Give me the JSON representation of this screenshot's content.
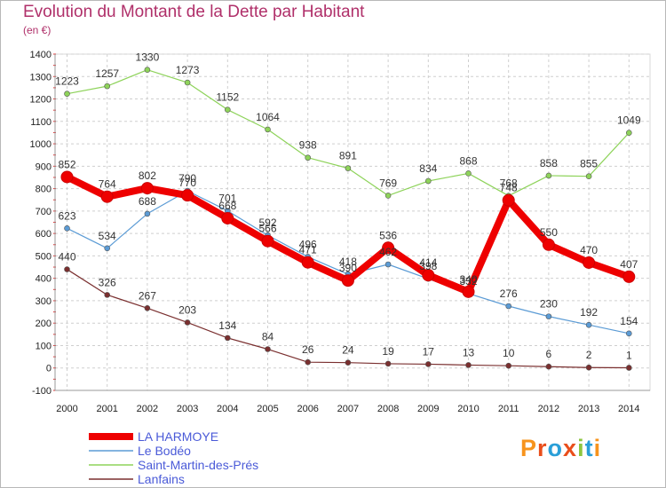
{
  "header": {
    "title": "Evolution du Montant de la Dette par Habitant",
    "subtitle": "(en €)"
  },
  "logo": {
    "text": "Proxiti",
    "colors": [
      "#f7941d",
      "#e94e1b",
      "#2a9fd8",
      "#e94e1b",
      "#8dc63f",
      "#2a9fd8",
      "#f7941d"
    ]
  },
  "chart_data": {
    "type": "line",
    "ylim": [
      -100,
      1400
    ],
    "yticks": [
      -100,
      0,
      100,
      200,
      300,
      400,
      500,
      600,
      700,
      800,
      900,
      1000,
      1100,
      1200,
      1300,
      1400
    ],
    "x": [
      "2000",
      "2001",
      "2002",
      "2003",
      "2004",
      "2005",
      "2006",
      "2007",
      "2008",
      "2009",
      "2010",
      "2011",
      "2012",
      "2013",
      "2014"
    ],
    "grid": true,
    "legend_position": "bottom-left",
    "series": [
      {
        "name": "LA HARMOYE",
        "color": "#ee0000",
        "values": [
          852,
          764,
          802,
          770,
          668,
          566,
          471,
          390,
          536,
          414,
          340,
          748,
          550,
          470,
          407
        ]
      },
      {
        "name": "Le Bodéo",
        "color": "#5b9bd5",
        "values": [
          623,
          534,
          688,
          790,
          701,
          592,
          496,
          418,
          462,
          398,
          332,
          276,
          230,
          192,
          154
        ]
      },
      {
        "name": "Saint-Martin-des-Prés",
        "color": "#8ed35a",
        "values": [
          1223,
          1257,
          1330,
          1273,
          1152,
          1064,
          938,
          891,
          769,
          834,
          868,
          768,
          858,
          855,
          1049
        ]
      },
      {
        "name": "Lanfains",
        "color": "#7a2f2f",
        "values": [
          440,
          326,
          267,
          203,
          134,
          84,
          26,
          24,
          19,
          17,
          13,
          10,
          6,
          2,
          1
        ]
      }
    ]
  }
}
